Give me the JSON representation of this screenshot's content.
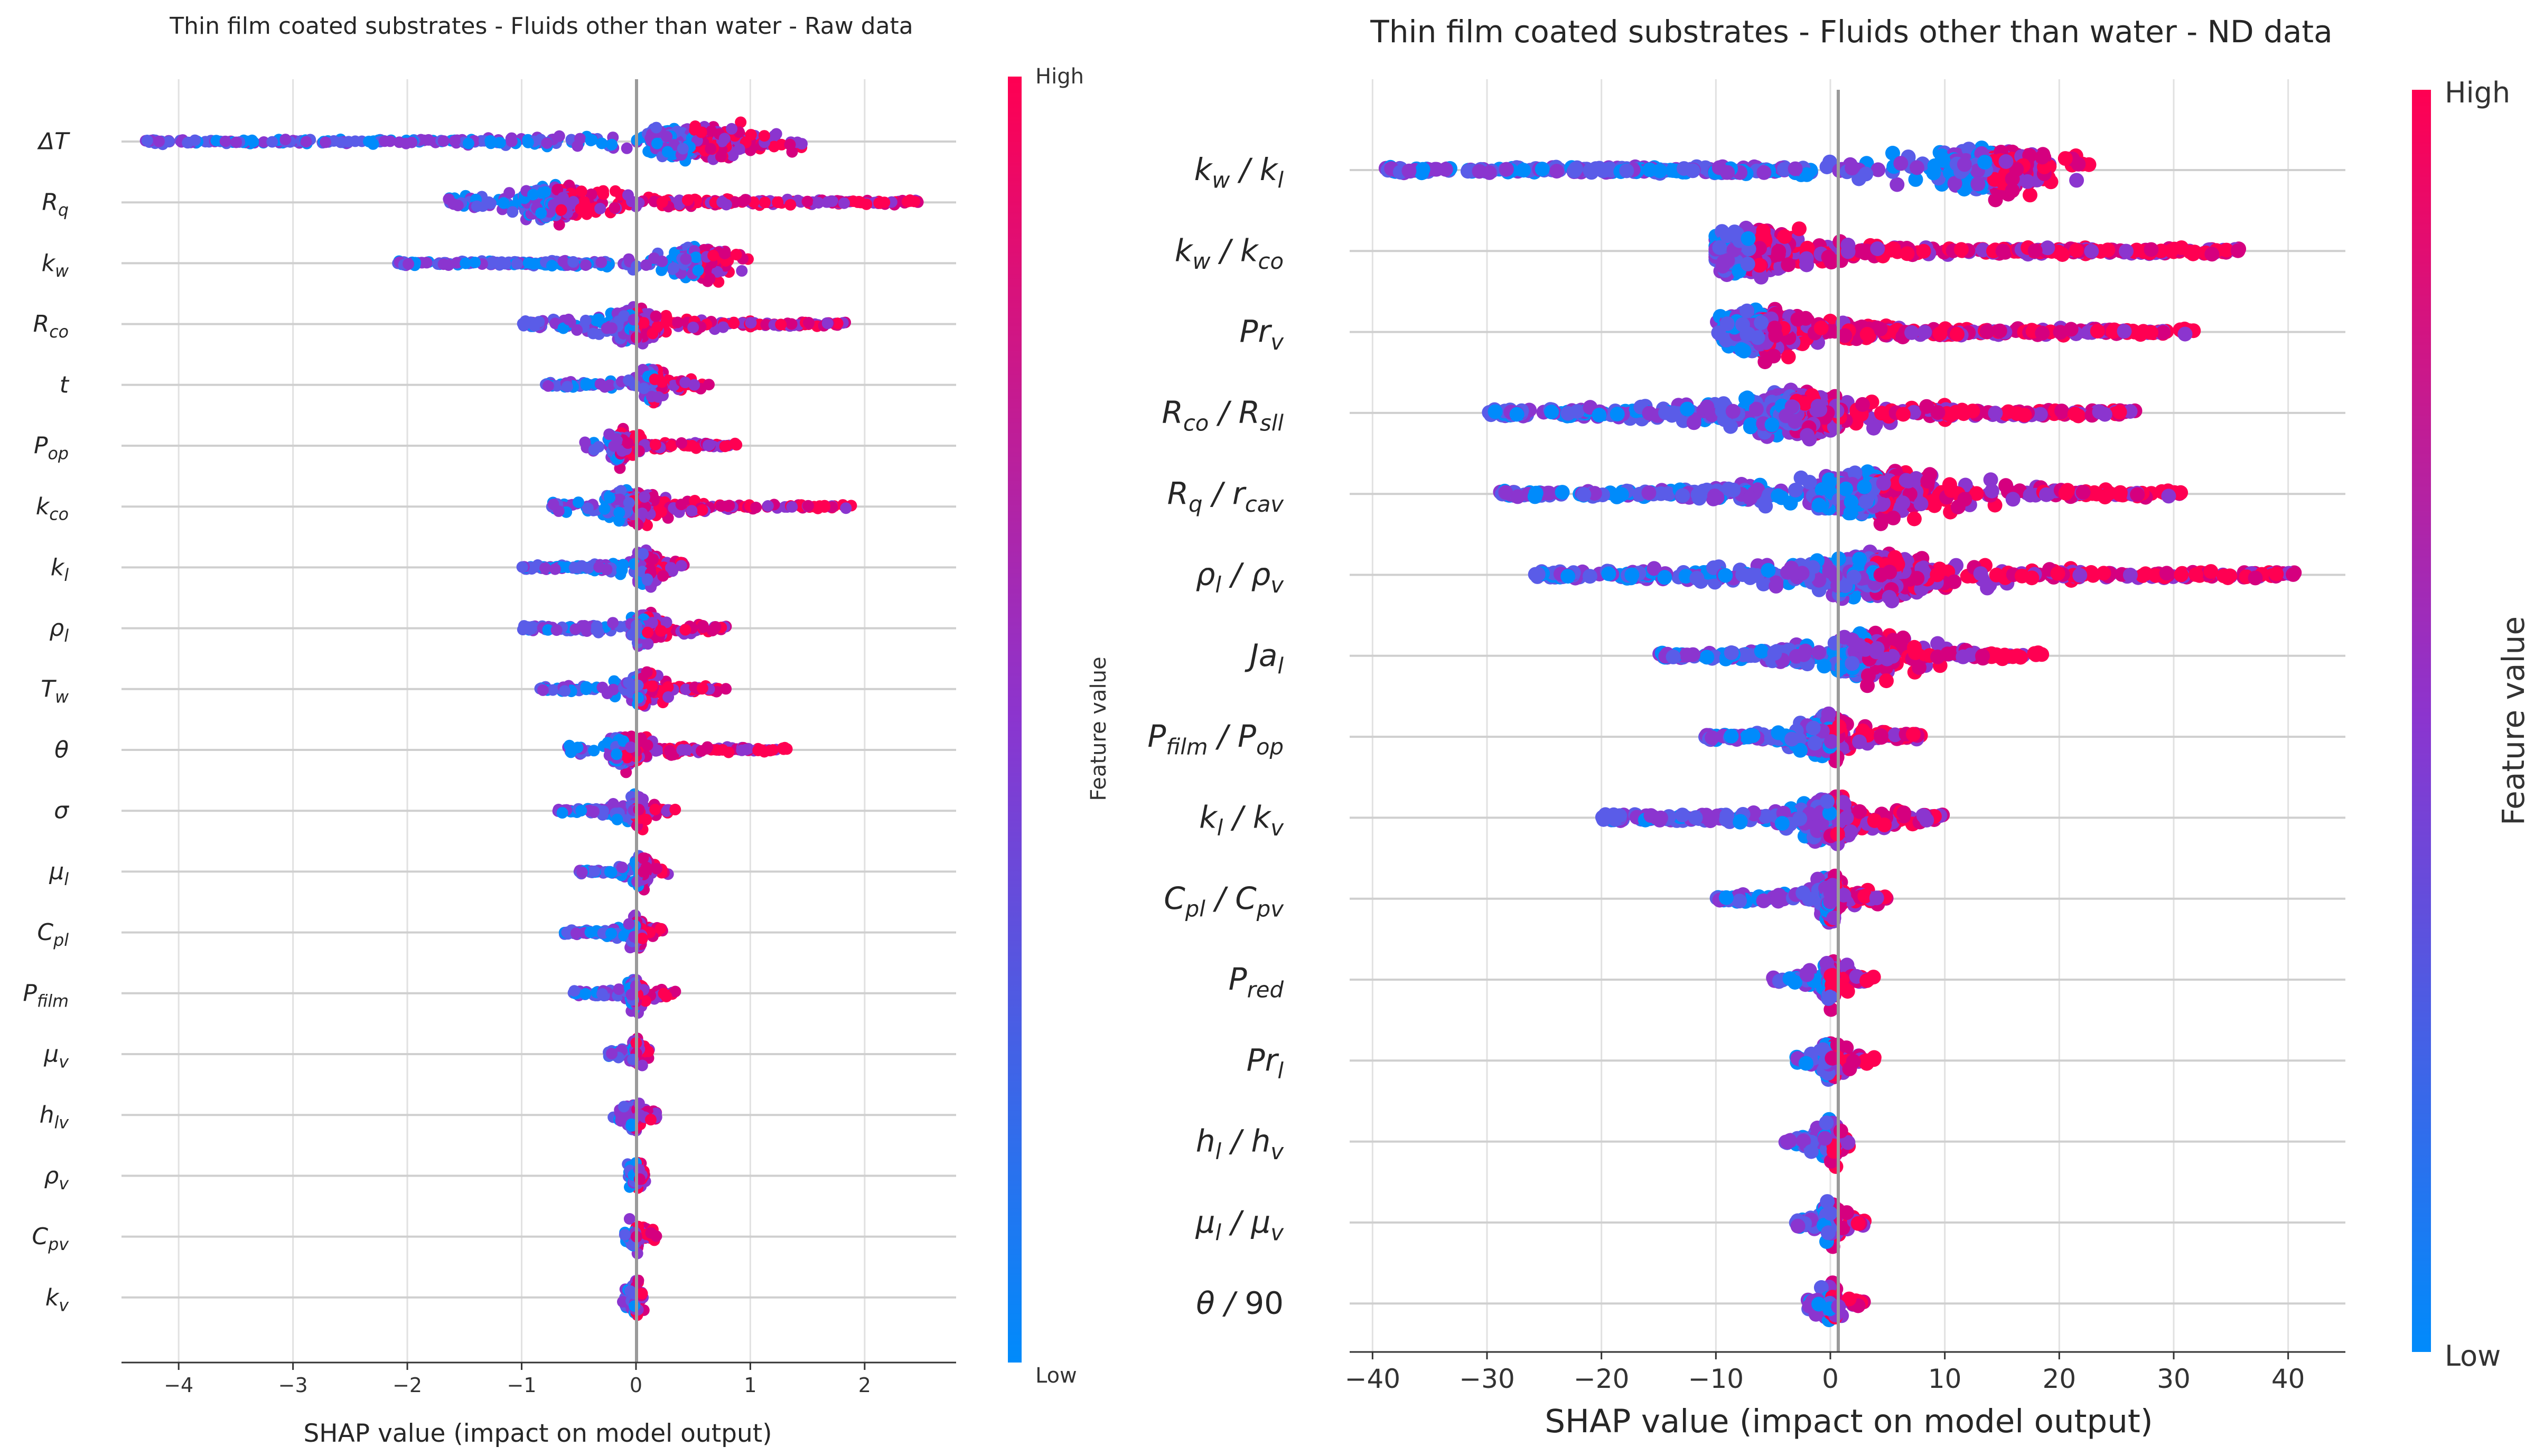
{
  "chart_data": [
    {
      "type": "scatter",
      "subtype": "shap-beeswarm",
      "title": "Thin film coated substrates - Fluids other than water - Raw data",
      "xlabel": "SHAP value (impact on model output)",
      "ylabel": "",
      "xlim": [
        -4.5,
        2.8
      ],
      "xticks": [
        -4,
        -3,
        -2,
        -1,
        0,
        1,
        2
      ],
      "xtick_labels": [
        "−4",
        "−3",
        "−2",
        "−1",
        "0",
        "1",
        "2"
      ],
      "colorbar": {
        "label": "Feature value",
        "high": "High",
        "low": "Low",
        "colors": [
          "#ff0052",
          "#008bfb"
        ]
      },
      "features": [
        {
          "base": "ΔT",
          "sub": "",
          "min": -4.3,
          "max": 1.5,
          "core": 0.5
        },
        {
          "base": "R",
          "sub": "q",
          "min": -1.65,
          "max": 2.5,
          "core": -0.7
        },
        {
          "base": "k",
          "sub": "w",
          "min": -2.1,
          "max": 1.0,
          "core": 0.55
        },
        {
          "base": "R",
          "sub": "co",
          "min": -1.0,
          "max": 1.85,
          "core": 0.0
        },
        {
          "base": "t",
          "sub": "",
          "min": -0.8,
          "max": 0.65,
          "core": 0.15
        },
        {
          "base": "P",
          "sub": "op",
          "min": -0.45,
          "max": 0.9,
          "core": -0.15
        },
        {
          "base": "k",
          "sub": "co",
          "min": -0.75,
          "max": 1.9,
          "core": -0.05
        },
        {
          "base": "k",
          "sub": "l",
          "min": -1.0,
          "max": 0.45,
          "core": 0.1
        },
        {
          "base": "ρ",
          "sub": "l",
          "min": -1.0,
          "max": 0.8,
          "core": 0.1
        },
        {
          "base": "T",
          "sub": "w",
          "min": -0.85,
          "max": 0.8,
          "core": 0.05
        },
        {
          "base": "θ",
          "sub": "",
          "min": -0.6,
          "max": 1.35,
          "core": -0.1
        },
        {
          "base": "σ",
          "sub": "",
          "min": -0.7,
          "max": 0.35,
          "core": 0.0
        },
        {
          "base": "μ",
          "sub": "l",
          "min": -0.5,
          "max": 0.3,
          "core": 0.05
        },
        {
          "base": "C",
          "sub": "pl",
          "min": -0.65,
          "max": 0.25,
          "core": 0.0
        },
        {
          "base": "P",
          "sub": "film",
          "min": -0.55,
          "max": 0.35,
          "core": 0.0
        },
        {
          "base": "μ",
          "sub": "v",
          "min": -0.25,
          "max": 0.12,
          "core": 0.0
        },
        {
          "base": "h",
          "sub": "lv",
          "min": -0.2,
          "max": 0.2,
          "core": 0.0
        },
        {
          "base": "ρ",
          "sub": "v",
          "min": -0.08,
          "max": 0.12,
          "core": 0.0
        },
        {
          "base": "C",
          "sub": "pv",
          "min": -0.1,
          "max": 0.18,
          "core": 0.0
        },
        {
          "base": "k",
          "sub": "v",
          "min": -0.12,
          "max": 0.08,
          "core": 0.0
        }
      ]
    },
    {
      "type": "scatter",
      "subtype": "shap-beeswarm",
      "title": "Thin film coated substrates - Fluids other than water - ND data",
      "xlabel": "SHAP value (impact on model output)",
      "ylabel": "",
      "xlim": [
        -42,
        45
      ],
      "xticks": [
        -40,
        -30,
        -20,
        -10,
        0,
        10,
        20,
        30,
        40
      ],
      "xtick_labels": [
        "−40",
        "−30",
        "−20",
        "−10",
        "0",
        "10",
        "20",
        "30",
        "40"
      ],
      "colorbar": {
        "label": "Feature value",
        "high": "High",
        "low": "Low",
        "colors": [
          "#ff0052",
          "#008bfb"
        ]
      },
      "features": [
        {
          "base": "k",
          "sub": "w",
          "base2": "k",
          "sub2": "l",
          "min": -39,
          "max": 23,
          "core": 14
        },
        {
          "base": "k",
          "sub": "w",
          "base2": "k",
          "sub2": "co",
          "min": -10,
          "max": 36,
          "core": -7
        },
        {
          "base": "Pr",
          "sub": "v",
          "min": -10,
          "max": 32,
          "core": -6
        },
        {
          "base": "R",
          "sub": "co",
          "base2": "R",
          "sub2": "sll",
          "min": -30,
          "max": 27,
          "core": -3
        },
        {
          "base": "R",
          "sub": "q",
          "base2": "r",
          "sub2": "cav",
          "min": -29,
          "max": 31,
          "core": 4
        },
        {
          "base": "ρ",
          "sub": "l",
          "base2": "ρ",
          "sub2": "v",
          "min": -26,
          "max": 41,
          "core": 4
        },
        {
          "base": "Ja",
          "sub": "l",
          "min": -15,
          "max": 19,
          "core": 3
        },
        {
          "base": "P",
          "sub": "film",
          "base2": "P",
          "sub2": "op",
          "min": -11,
          "max": 8,
          "core": 0
        },
        {
          "base": "k",
          "sub": "l",
          "base2": "k",
          "sub2": "v",
          "min": -20,
          "max": 10,
          "core": 0
        },
        {
          "base": "C",
          "sub": "pl",
          "base2": "C",
          "sub2": "pv",
          "min": -10,
          "max": 5,
          "core": 0
        },
        {
          "base": "P",
          "sub": "red",
          "min": -5,
          "max": 4,
          "core": 0
        },
        {
          "base": "Pr",
          "sub": "l",
          "min": -3,
          "max": 4,
          "core": 0
        },
        {
          "base": "h",
          "sub": "l",
          "base2": "h",
          "sub2": "v",
          "min": -4,
          "max": 2,
          "core": 0
        },
        {
          "base": "μ",
          "sub": "l",
          "base2": "μ",
          "sub2": "v",
          "min": -3,
          "max": 3,
          "core": 0
        },
        {
          "base": "θ",
          "sub": "",
          "base2": "90",
          "sub2": "",
          "plain2": true,
          "min": -2,
          "max": 3,
          "core": 0
        }
      ]
    }
  ]
}
